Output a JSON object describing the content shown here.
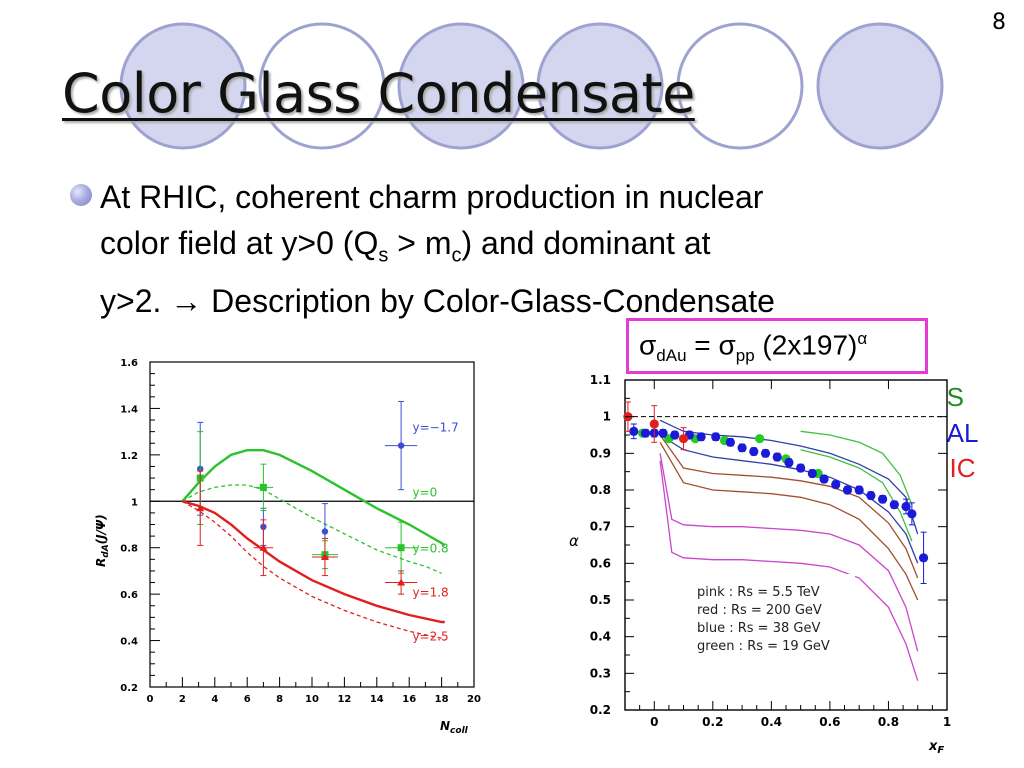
{
  "slide": {
    "number": "8",
    "title": "Color Glass Condensate",
    "bullet": {
      "line1": "At RHIC, coherent charm production in nuclear",
      "line2_a": "color field at y>0 (Q",
      "line2_sub1": "s",
      "line2_b": " > m",
      "line2_sub2": "c",
      "line2_c": ") and dominant at",
      "line3_a": "y>2. ",
      "arrow": "→",
      "line3_b": " Description by Color-Glass-Condensate"
    },
    "formula": {
      "sigma1": "σ",
      "sub1": "dAu",
      "eq": " = ",
      "sigma2": "σ",
      "sub2": "pp",
      "rest": " (2x197)",
      "sup": "α"
    },
    "right_legend": [
      "SPS",
      "FNAL",
      "RHIC"
    ],
    "colors": {
      "title_shadow": "#a9a9a9",
      "circle_fill": "#d4d6ef",
      "circle_stroke": "#9ea2d0",
      "box": "#e63ad5"
    }
  },
  "chart_data": [
    {
      "type": "line",
      "xlabel": "N",
      "xlabel_sub": "coll",
      "ylabel": "R",
      "ylabel_sub": "dA",
      "ylabel_rest": "(J/Ψ)",
      "xlim": [
        0,
        20
      ],
      "ylim": [
        0.2,
        1.6
      ],
      "x_ticks": [
        0,
        2,
        4,
        6,
        8,
        10,
        12,
        14,
        16,
        18,
        20
      ],
      "y_ticks": [
        0.2,
        0.4,
        0.6,
        0.8,
        1,
        1.2,
        1.4,
        1.6
      ],
      "y_tick_labels": [
        "0.2",
        "0.4",
        "0.6",
        "0.8",
        "1",
        "1.2",
        "1.4",
        "1.6"
      ],
      "reference_line": 1,
      "series": [
        {
          "name": "y=−1.7",
          "color": "#3c4fd4",
          "label_at": [
            16.2,
            1.3
          ],
          "points": [
            [
              3.1,
              1.14
            ],
            [
              7.0,
              0.89
            ],
            [
              10.8,
              0.87
            ],
            [
              15.5,
              1.24
            ]
          ],
          "yerr": [
            0.2,
            0.08,
            0.12,
            0.19
          ],
          "xerr": [
            0,
            0,
            0,
            1.0
          ],
          "marker": "circle"
        },
        {
          "name": "y=0",
          "color": "#2bc32b",
          "label_at": [
            16.2,
            1.02
          ],
          "points": [
            [
              3.1,
              1.1
            ],
            [
              7.0,
              1.06
            ],
            [
              10.8,
              0.77
            ],
            [
              15.5,
              0.8
            ]
          ],
          "yerr": [
            0.2,
            0.1,
            0.06,
            0.11
          ],
          "xerr": [
            0,
            0.6,
            0.8,
            1.0
          ],
          "marker": "square",
          "curve": [
            [
              2,
              1.0
            ],
            [
              3,
              1.08
            ],
            [
              4,
              1.15
            ],
            [
              5,
              1.2
            ],
            [
              6,
              1.22
            ],
            [
              7,
              1.22
            ],
            [
              8,
              1.2
            ],
            [
              10,
              1.13
            ],
            [
              12,
              1.05
            ],
            [
              14,
              0.97
            ],
            [
              16,
              0.9
            ],
            [
              18,
              0.82
            ],
            [
              18.2,
              0.81
            ]
          ]
        },
        {
          "name": "y=0.8",
          "color": "#2bc32b",
          "label_at": [
            16.2,
            0.78
          ],
          "dashed": true,
          "curve": [
            [
              2,
              1.0
            ],
            [
              3,
              1.04
            ],
            [
              4,
              1.06
            ],
            [
              5,
              1.07
            ],
            [
              6,
              1.07
            ],
            [
              7,
              1.05
            ],
            [
              8,
              1.01
            ],
            [
              10,
              0.93
            ],
            [
              12,
              0.86
            ],
            [
              14,
              0.79
            ],
            [
              16,
              0.74
            ],
            [
              17,
              0.72
            ],
            [
              18,
              0.69
            ]
          ]
        },
        {
          "name": "y=1.8",
          "color": "#e02020",
          "label_at": [
            16.2,
            0.59
          ],
          "points": [
            [
              3.1,
              0.97
            ],
            [
              7.0,
              0.8
            ],
            [
              10.8,
              0.76
            ],
            [
              15.5,
              0.65
            ]
          ],
          "yerr": [
            0.16,
            0.12,
            0.08,
            0.05
          ],
          "xerr": [
            0,
            0.6,
            0.8,
            1.0
          ],
          "marker": "triangle",
          "curve": [
            [
              2,
              1.0
            ],
            [
              3,
              0.98
            ],
            [
              4,
              0.95
            ],
            [
              5,
              0.9
            ],
            [
              6,
              0.84
            ],
            [
              7,
              0.79
            ],
            [
              8,
              0.74
            ],
            [
              10,
              0.66
            ],
            [
              12,
              0.6
            ],
            [
              14,
              0.55
            ],
            [
              16,
              0.51
            ],
            [
              18,
              0.48
            ],
            [
              18.2,
              0.48
            ]
          ]
        },
        {
          "name": "y=2.5",
          "color": "#e02020",
          "label_at": [
            16.2,
            0.4
          ],
          "dashed": true,
          "curve": [
            [
              2,
              1.0
            ],
            [
              3,
              0.96
            ],
            [
              4,
              0.91
            ],
            [
              5,
              0.85
            ],
            [
              6,
              0.78
            ],
            [
              7,
              0.72
            ],
            [
              8,
              0.67
            ],
            [
              10,
              0.59
            ],
            [
              12,
              0.53
            ],
            [
              14,
              0.48
            ],
            [
              16,
              0.44
            ],
            [
              18,
              0.41
            ],
            [
              18.2,
              0.4
            ]
          ]
        }
      ]
    },
    {
      "type": "scatter",
      "xlabel": "x",
      "xlabel_sub": "F",
      "ylabel": "α",
      "xlim": [
        -0.1,
        1.0
      ],
      "ylim": [
        0.2,
        1.1
      ],
      "x_ticks": [
        0,
        0.2,
        0.4,
        0.6,
        0.8,
        1
      ],
      "x_tick_labels": [
        "0",
        "0.2",
        "0.4",
        "0.6",
        "0.8",
        "1"
      ],
      "y_ticks": [
        0.2,
        0.3,
        0.4,
        0.5,
        0.6,
        0.7,
        0.8,
        0.9,
        1,
        1.1
      ],
      "y_tick_labels": [
        "0.2",
        "0.3",
        "0.4",
        "0.5",
        "0.6",
        "0.7",
        "0.8",
        "0.9",
        "1",
        "1.1"
      ],
      "reference_line": 1,
      "legend_box": [
        "pink : Rs = 5.5 TeV",
        "red : Rs = 200 GeV",
        "blue : Rs = 38 GeV",
        "green : Rs = 19 GeV"
      ],
      "series": [
        {
          "name": "SPS",
          "color": "#22cc22",
          "points": [
            [
              -0.04,
              0.955
            ],
            [
              0.05,
              0.94
            ],
            [
              0.14,
              0.94
            ],
            [
              0.24,
              0.935
            ],
            [
              0.36,
              0.94
            ],
            [
              0.45,
              0.885
            ],
            [
              0.56,
              0.845
            ],
            [
              0.66,
              0.8
            ]
          ]
        },
        {
          "name": "FNAL",
          "color": "#1a1ad8",
          "points": [
            [
              -0.07,
              0.96
            ],
            [
              -0.03,
              0.955
            ],
            [
              0.0,
              0.955
            ],
            [
              0.03,
              0.955
            ],
            [
              0.07,
              0.95
            ],
            [
              0.12,
              0.95
            ],
            [
              0.16,
              0.945
            ],
            [
              0.21,
              0.945
            ],
            [
              0.26,
              0.93
            ],
            [
              0.3,
              0.915
            ],
            [
              0.34,
              0.905
            ],
            [
              0.38,
              0.9
            ],
            [
              0.42,
              0.89
            ],
            [
              0.46,
              0.875
            ],
            [
              0.5,
              0.86
            ],
            [
              0.54,
              0.845
            ],
            [
              0.58,
              0.83
            ],
            [
              0.62,
              0.815
            ],
            [
              0.66,
              0.8
            ],
            [
              0.7,
              0.8
            ],
            [
              0.74,
              0.785
            ],
            [
              0.78,
              0.775
            ],
            [
              0.82,
              0.76
            ],
            [
              0.86,
              0.755
            ],
            [
              0.88,
              0.735
            ],
            [
              0.92,
              0.615
            ]
          ],
          "yerr": [
            0.02,
            0.01,
            0.01,
            0.01,
            0.01,
            0.01,
            0.01,
            0.01,
            0.01,
            0.01,
            0.01,
            0.01,
            0.01,
            0.01,
            0.01,
            0.01,
            0.01,
            0.01,
            0.01,
            0.01,
            0.01,
            0.01,
            0.01,
            0.02,
            0.03,
            0.07
          ]
        },
        {
          "name": "RHIC",
          "color": "#e02020",
          "points": [
            [
              -0.09,
              1.0
            ],
            [
              0.0,
              0.98
            ],
            [
              0.1,
              0.94
            ]
          ],
          "yerr": [
            0.04,
            0.05,
            0.03
          ]
        }
      ],
      "curves": [
        {
          "color": "#3040a8",
          "points": [
            [
              0.02,
              0.99
            ],
            [
              0.1,
              0.96
            ],
            [
              0.2,
              0.95
            ],
            [
              0.3,
              0.945
            ],
            [
              0.4,
              0.935
            ],
            [
              0.5,
              0.92
            ],
            [
              0.6,
              0.9
            ],
            [
              0.7,
              0.87
            ],
            [
              0.8,
              0.83
            ],
            [
              0.86,
              0.78
            ],
            [
              0.9,
              0.68
            ]
          ]
        },
        {
          "color": "#3040a8",
          "points": [
            [
              0.02,
              0.95
            ],
            [
              0.1,
              0.91
            ],
            [
              0.2,
              0.89
            ],
            [
              0.3,
              0.88
            ],
            [
              0.4,
              0.87
            ],
            [
              0.5,
              0.855
            ],
            [
              0.6,
              0.835
            ],
            [
              0.7,
              0.8
            ],
            [
              0.8,
              0.74
            ],
            [
              0.86,
              0.68
            ],
            [
              0.9,
              0.6
            ]
          ]
        },
        {
          "color": "#a05030",
          "points": [
            [
              0.02,
              0.95
            ],
            [
              0.1,
              0.86
            ],
            [
              0.2,
              0.845
            ],
            [
              0.3,
              0.84
            ],
            [
              0.4,
              0.835
            ],
            [
              0.5,
              0.825
            ],
            [
              0.6,
              0.81
            ],
            [
              0.7,
              0.78
            ],
            [
              0.8,
              0.71
            ],
            [
              0.86,
              0.64
            ],
            [
              0.9,
              0.56
            ]
          ]
        },
        {
          "color": "#a05030",
          "points": [
            [
              0.02,
              0.93
            ],
            [
              0.1,
              0.82
            ],
            [
              0.2,
              0.8
            ],
            [
              0.3,
              0.795
            ],
            [
              0.4,
              0.79
            ],
            [
              0.5,
              0.78
            ],
            [
              0.6,
              0.76
            ],
            [
              0.7,
              0.72
            ],
            [
              0.8,
              0.64
            ],
            [
              0.86,
              0.57
            ],
            [
              0.9,
              0.5
            ]
          ]
        },
        {
          "color": "#cc44cc",
          "points": [
            [
              0.02,
              0.9
            ],
            [
              0.06,
              0.72
            ],
            [
              0.1,
              0.705
            ],
            [
              0.2,
              0.7
            ],
            [
              0.3,
              0.7
            ],
            [
              0.4,
              0.695
            ],
            [
              0.5,
              0.69
            ],
            [
              0.6,
              0.68
            ],
            [
              0.7,
              0.65
            ],
            [
              0.8,
              0.58
            ],
            [
              0.86,
              0.48
            ],
            [
              0.9,
              0.36
            ]
          ]
        },
        {
          "color": "#cc44cc",
          "points": [
            [
              0.02,
              0.88
            ],
            [
              0.06,
              0.63
            ],
            [
              0.1,
              0.615
            ],
            [
              0.2,
              0.61
            ],
            [
              0.3,
              0.61
            ],
            [
              0.4,
              0.605
            ],
            [
              0.5,
              0.6
            ],
            [
              0.6,
              0.59
            ],
            [
              0.7,
              0.56
            ],
            [
              0.8,
              0.48
            ],
            [
              0.86,
              0.38
            ],
            [
              0.9,
              0.28
            ]
          ]
        },
        {
          "color": "#40c040",
          "points": [
            [
              0.5,
              0.96
            ],
            [
              0.6,
              0.95
            ],
            [
              0.7,
              0.93
            ],
            [
              0.78,
              0.9
            ],
            [
              0.84,
              0.84
            ],
            [
              0.88,
              0.76
            ]
          ]
        },
        {
          "color": "#40c040",
          "points": [
            [
              0.5,
              0.91
            ],
            [
              0.6,
              0.89
            ],
            [
              0.7,
              0.86
            ],
            [
              0.78,
              0.82
            ],
            [
              0.84,
              0.74
            ],
            [
              0.88,
              0.66
            ]
          ]
        }
      ]
    }
  ]
}
